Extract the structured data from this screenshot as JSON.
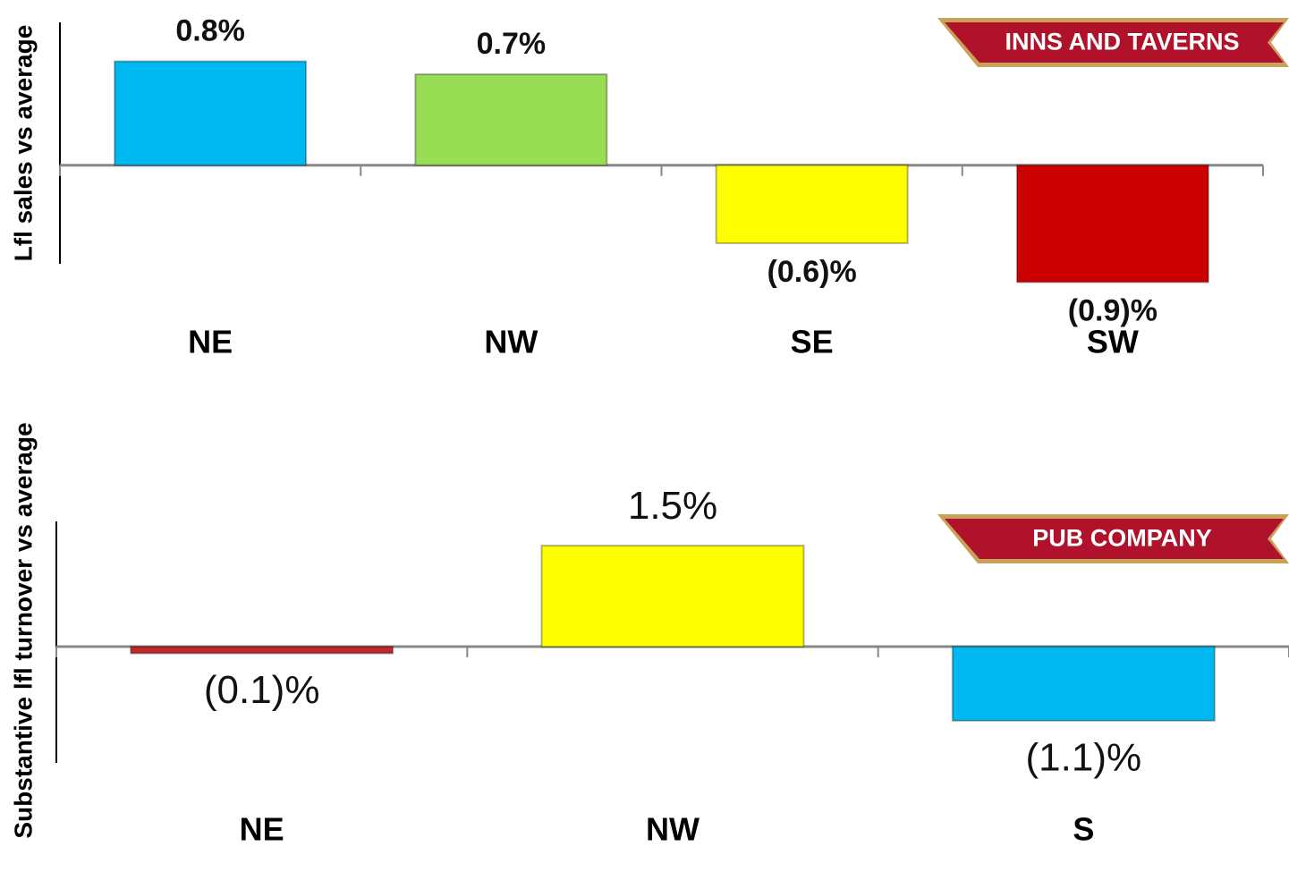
{
  "chart_data": [
    {
      "type": "bar",
      "title": "INNS AND TAVERNS",
      "ylabel": "Lfl sales vs average",
      "categories": [
        "NE",
        "NW",
        "SE",
        "SW"
      ],
      "values": [
        0.8,
        0.7,
        -0.6,
        -0.9
      ],
      "value_labels": [
        "0.8%",
        "0.7%",
        "(0.6)%",
        "(0.9)%"
      ],
      "colors": [
        "#00b8f0",
        "#99dd55",
        "#ffff00",
        "#cc0000"
      ],
      "ylim": [
        -1.0,
        1.1
      ]
    },
    {
      "type": "bar",
      "title": "PUB COMPANY",
      "ylabel": "Substantive lfl  turnover vs average",
      "categories": [
        "NE",
        "NW",
        "S"
      ],
      "values": [
        -0.1,
        1.5,
        -1.1
      ],
      "value_labels": [
        "(0.1)%",
        "1.5%",
        "(1.1)%"
      ],
      "colors": [
        "#c0282a",
        "#ffff00",
        "#00b8f0"
      ],
      "ylim": [
        -1.7,
        1.9
      ]
    }
  ]
}
